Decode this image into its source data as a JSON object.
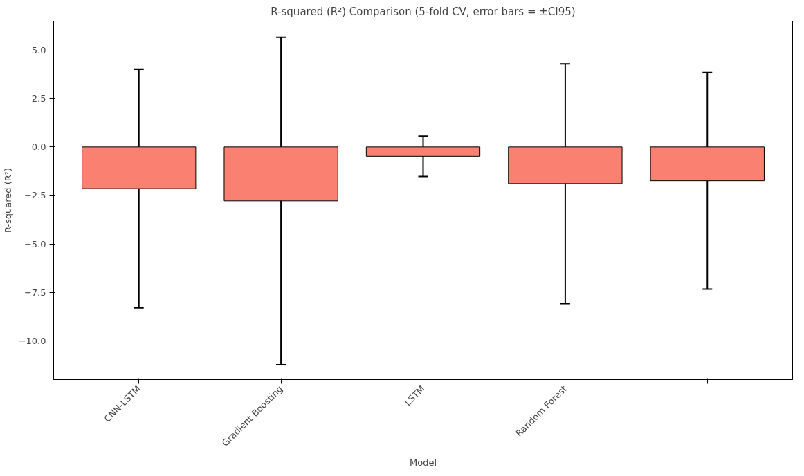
{
  "chart_data": {
    "type": "bar",
    "title": "R-squared (R²) Comparison (5-fold CV, error bars = ±CI95)",
    "xlabel": "Model",
    "ylabel": "R-squared (R²)",
    "categories": [
      "CNN-LSTM",
      "Gradient Boosting",
      "LSTM",
      "Random Forest",
      null
    ],
    "values": [
      -2.15,
      -2.78,
      -0.48,
      -1.89,
      -1.74
    ],
    "errors": [
      6.15,
      8.45,
      1.04,
      6.19,
      5.59
    ],
    "color": "#fa8072",
    "ylim": [
      -12.0,
      6.5
    ],
    "yticks": [
      {
        "value": -10,
        "label": "−10.0"
      },
      -7.5,
      {
        "value": -5,
        "label": "−5.0"
      },
      -2.5,
      {
        "value": 0,
        "label": "0.0"
      },
      2.5,
      {
        "value": 5,
        "label": "5.0"
      }
    ],
    "grid": false
  }
}
